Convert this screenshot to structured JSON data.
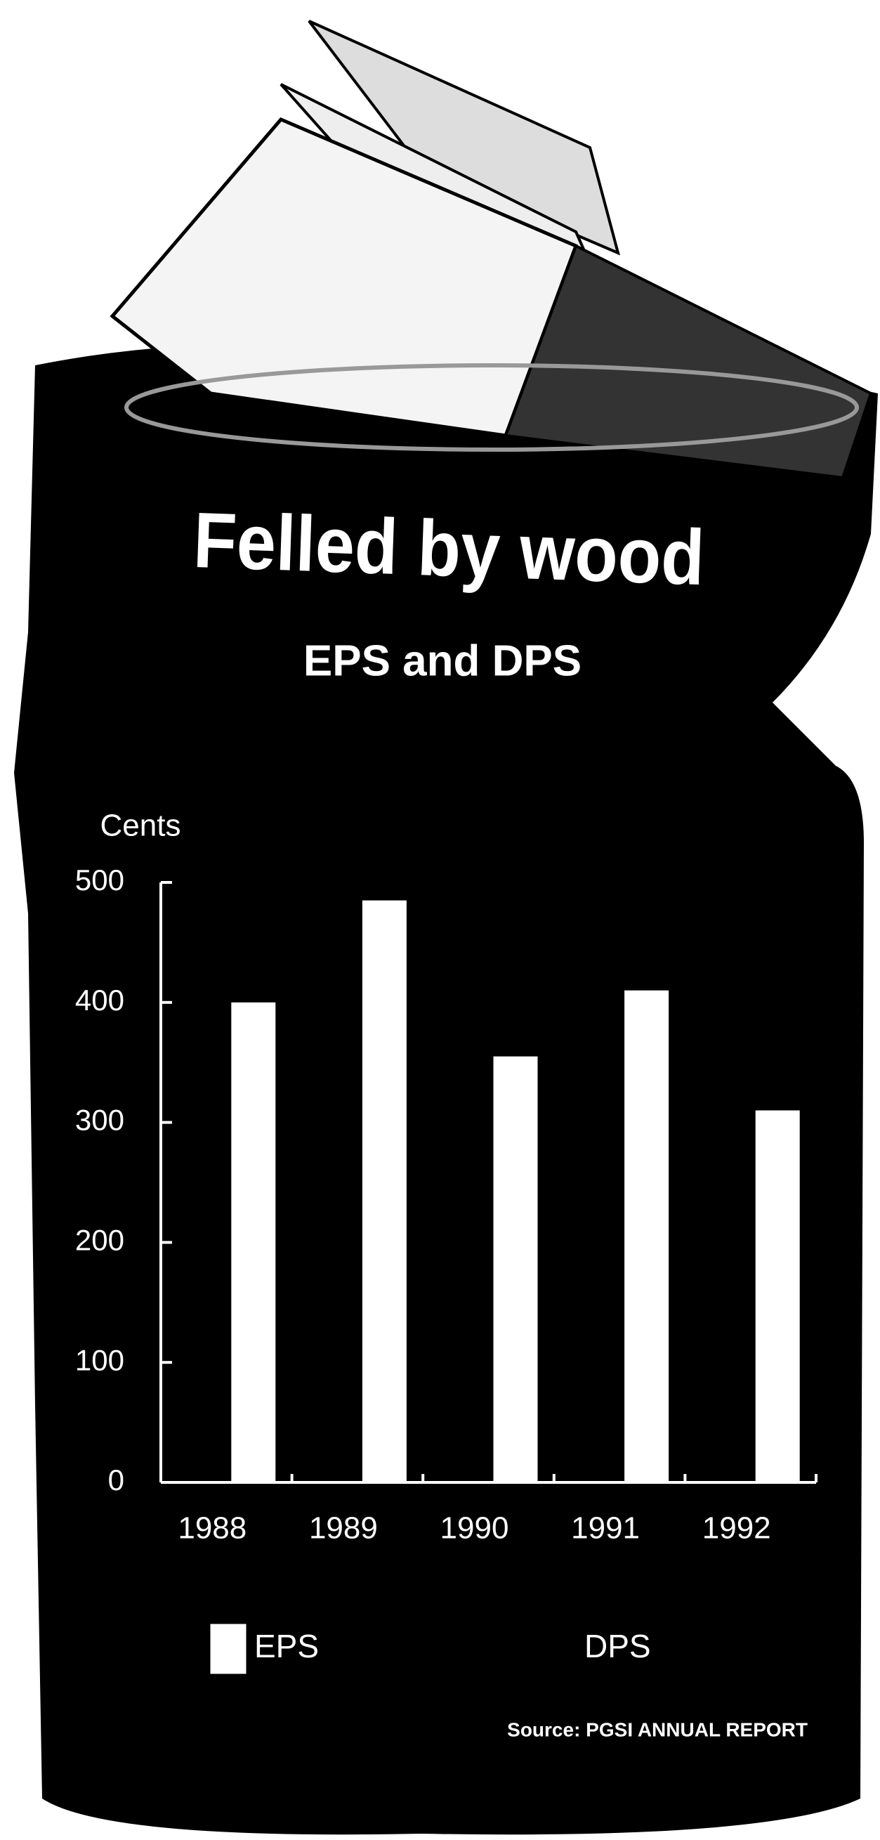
{
  "chart_data": {
    "type": "bar",
    "title": "Felled by wood",
    "subtitle": "EPS and DPS",
    "y_label": "Cents",
    "categories": [
      "1988",
      "1989",
      "1990",
      "1991",
      "1992"
    ],
    "series": [
      {
        "name": "EPS",
        "color": "#ffffff",
        "values": [
          400,
          485,
          355,
          410,
          310
        ]
      },
      {
        "name": "DPS",
        "color": "#000000",
        "values": [
          null,
          null,
          null,
          null,
          null
        ]
      }
    ],
    "ylim": [
      0,
      500
    ],
    "yticks": [
      0,
      100,
      200,
      300,
      400,
      500
    ],
    "source": "Source: PGSI ANNUAL REPORT"
  }
}
